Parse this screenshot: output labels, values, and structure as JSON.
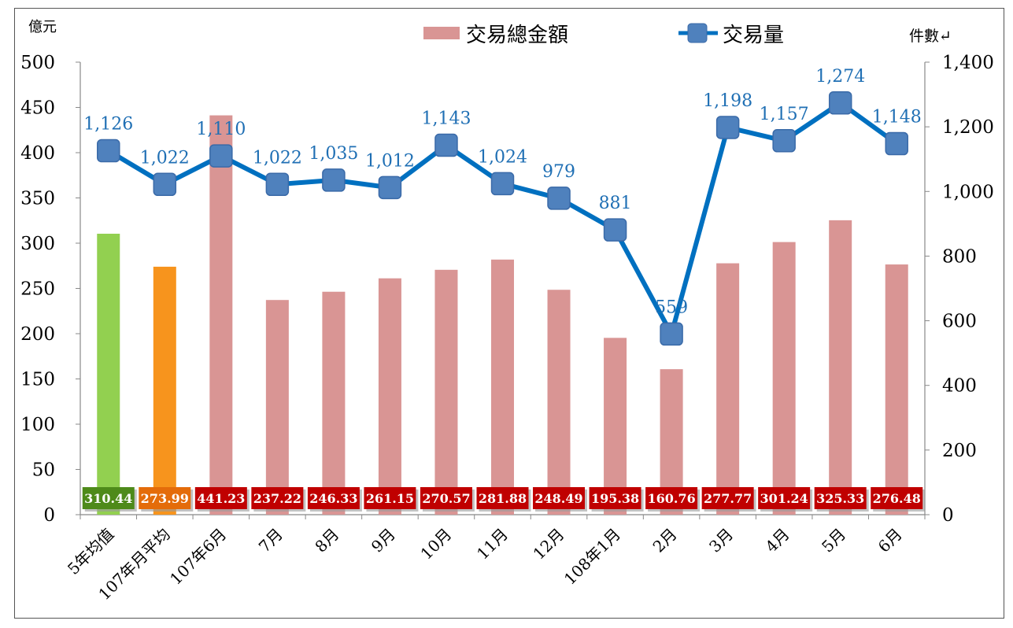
{
  "chart_data": {
    "type": "bar+line",
    "title": "",
    "y_left_label": "億元",
    "y_right_label": "件數↵",
    "y_left_range": [
      0,
      500
    ],
    "y_left_ticks": [
      "0",
      "50",
      "100",
      "150",
      "200",
      "250",
      "300",
      "350",
      "400",
      "450",
      "500"
    ],
    "y_right_range": [
      0,
      1400
    ],
    "y_right_ticks": [
      "0",
      "200",
      "400",
      "600",
      "800",
      "1,000",
      "1,200",
      "1,400"
    ],
    "grid": false,
    "legend_position": "top-center",
    "categories": [
      "5年均值",
      "107年月平均",
      "107年6月",
      "7月",
      "8月",
      "9月",
      "10月",
      "11月",
      "12月",
      "108年1月",
      "2月",
      "3月",
      "4月",
      "5月",
      "6月"
    ],
    "series": [
      {
        "name": "交易總金額",
        "kind": "bar",
        "axis": "left",
        "color": "#d99594",
        "values": [
          310.44,
          273.99,
          441.23,
          237.22,
          246.33,
          261.15,
          270.57,
          281.88,
          248.49,
          195.38,
          160.76,
          277.77,
          301.24,
          325.33,
          276.48
        ],
        "labels": [
          "310.44",
          "273.99",
          "441.23",
          "237.22",
          "246.33",
          "261.15",
          "270.57",
          "281.88",
          "248.49",
          "195.38",
          "160.76",
          "277.77",
          "301.24",
          "325.33",
          "276.48"
        ],
        "bar_colors": [
          "#92d050",
          "#f7941d",
          "#d99594",
          "#d99594",
          "#d99594",
          "#d99594",
          "#d99594",
          "#d99594",
          "#d99594",
          "#d99594",
          "#d99594",
          "#d99594",
          "#d99594",
          "#d99594",
          "#d99594"
        ],
        "label_bg_colors": [
          "#4e8a1a",
          "#e46c0a",
          "#c00000",
          "#c00000",
          "#c00000",
          "#c00000",
          "#c00000",
          "#c00000",
          "#c00000",
          "#c00000",
          "#c00000",
          "#c00000",
          "#c00000",
          "#c00000",
          "#c00000"
        ]
      },
      {
        "name": "交易量",
        "kind": "line",
        "axis": "right",
        "color": "#0070c0",
        "marker_color": "#4f81bd",
        "values": [
          1126,
          1022,
          1110,
          1022,
          1035,
          1012,
          1143,
          1024,
          979,
          881,
          559,
          1198,
          1157,
          1274,
          1148
        ],
        "labels": [
          "1,126",
          "1,022",
          "1,110",
          "1,022",
          "1,035",
          "1,012",
          "1,143",
          "1,024",
          "979",
          "881",
          "559",
          "1,198",
          "1,157",
          "1,274",
          "1,148"
        ]
      }
    ]
  }
}
